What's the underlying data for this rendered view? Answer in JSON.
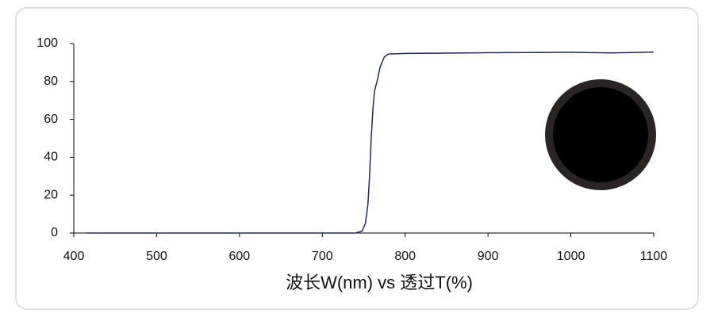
{
  "chart_data": {
    "type": "line",
    "x_label": "波长W(nm) vs 透过T(%)",
    "x": [
      415,
      500,
      600,
      700,
      740,
      748,
      752,
      755,
      757,
      759,
      761,
      763,
      766,
      770,
      775,
      780,
      800,
      850,
      900,
      950,
      1000,
      1050,
      1100
    ],
    "values": [
      0,
      0,
      0,
      0,
      0,
      1,
      5,
      15,
      30,
      50,
      65,
      75,
      80,
      88,
      93,
      94.5,
      94.8,
      95,
      95.2,
      95.3,
      95.4,
      95.1,
      95.5
    ],
    "color": "#1f2d5c",
    "xlim": [
      400,
      1100
    ],
    "xticks": [
      400,
      500,
      600,
      700,
      800,
      900,
      1000,
      1100
    ],
    "ylim": [
      0,
      100
    ],
    "yticks": [
      0,
      20,
      40,
      60,
      80,
      100
    ],
    "grid": false
  }
}
